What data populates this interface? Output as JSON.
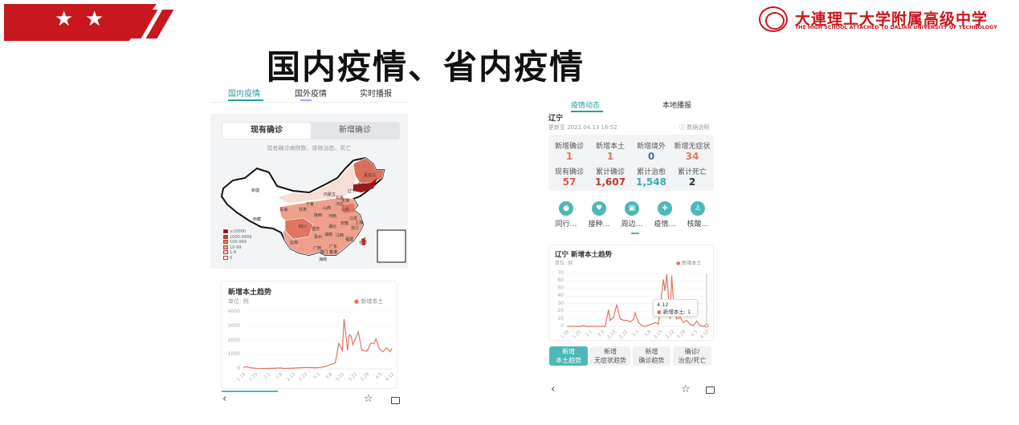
{
  "slide": {
    "title": "国内疫情、省内疫情",
    "logo_cn": "大連理工大学附属高级中学",
    "logo_en": "THE HIGH SCHOOL ATTACHED TO DALIAN UNIVERSITY OF TECHNOLOGY",
    "brand_color": "#c8171e",
    "banner_icons": [
      "star-icon",
      "star-icon"
    ]
  },
  "left_phone": {
    "tabs": [
      "国内疫情",
      "国外疫情",
      "实时播报"
    ],
    "active_tab": 0,
    "segment": [
      "现有确诊",
      "新增确诊"
    ],
    "map_caption": "现有确诊病例数，排除治愈、死亡",
    "legend": [
      {
        "label": "≥10000",
        "color": "#8b0f0f"
      },
      {
        "label": "1000-9999",
        "color": "#c0392b"
      },
      {
        "label": "100-999",
        "color": "#e07560"
      },
      {
        "label": "10-99",
        "color": "#eea08c"
      },
      {
        "label": "1-9",
        "color": "#f8ddd3"
      },
      {
        "label": "0",
        "color": "#ffffff"
      }
    ],
    "provinces": [
      "黑龙江",
      "吉林",
      "辽宁",
      "内蒙古",
      "新疆",
      "西藏",
      "青海",
      "甘肃",
      "宁夏",
      "北京",
      "天津",
      "河北",
      "山西",
      "山东",
      "陕西",
      "河南",
      "江苏",
      "安徽",
      "上海",
      "湖北",
      "四川",
      "重庆",
      "浙江",
      "贵州",
      "湖南",
      "江西",
      "福建",
      "云南",
      "广西",
      "广东",
      "台湾",
      "澳门",
      "香港",
      "海南"
    ]
  },
  "right_phone": {
    "tabs": [
      "疫情动态",
      "本地播报"
    ],
    "region": "辽宁",
    "updated": "更新至 2022.04.13 16:52",
    "data_note": "数据说明",
    "stats": [
      {
        "label": "新增确诊",
        "value": "1",
        "color": "#e8745c"
      },
      {
        "label": "新增本土",
        "value": "1",
        "color": "#e8745c"
      },
      {
        "label": "新增境外",
        "value": "0",
        "color": "#4a6fa5"
      },
      {
        "label": "新增无症状",
        "value": "34",
        "color": "#e8745c"
      },
      {
        "label": "现有确诊",
        "value": "57",
        "color": "#e05a4e"
      },
      {
        "label": "累计确诊",
        "value": "1,607",
        "color": "#c0392b"
      },
      {
        "label": "累计治愈",
        "value": "1,548",
        "color": "#3aaeae"
      },
      {
        "label": "累计死亡",
        "value": "2",
        "color": "#333333"
      }
    ],
    "shortcuts": [
      {
        "label": "同行…",
        "icon": "person-icon"
      },
      {
        "label": "接种…",
        "icon": "shield-icon"
      },
      {
        "label": "周边…",
        "icon": "building-icon"
      },
      {
        "label": "疫情…",
        "icon": "hospital-icon"
      },
      {
        "label": "核酸…",
        "icon": "test-tube-icon"
      }
    ],
    "tooltip": {
      "date": "4.12",
      "text": "新增本土: 1"
    },
    "buttons": [
      {
        "line1": "新增",
        "line2": "本土趋势"
      },
      {
        "line1": "新增",
        "line2": "无症状趋势"
      },
      {
        "line1": "新增",
        "line2": "确诊趋势"
      },
      {
        "line1": "确诊/",
        "line2": "治愈/死亡"
      }
    ]
  },
  "chart_data": [
    {
      "type": "line",
      "title": "新增本土趋势",
      "unit": "单位: 例",
      "series_name": "新增本土",
      "color": "#e07560",
      "ylim": [
        0,
        4000
      ],
      "yticks": [
        0,
        1000,
        2000,
        3000,
        4000
      ],
      "xticks": [
        "1.18",
        "1.25",
        "2.1",
        "2.8",
        "2.15",
        "2.22",
        "3.1",
        "3.8",
        "3.15",
        "3.22",
        "3.29",
        "4.5",
        "4.12"
      ],
      "grid": true,
      "legend": "top-right",
      "points": [
        [
          "1.18",
          100
        ],
        [
          "1.20",
          150
        ],
        [
          "1.22",
          80
        ],
        [
          "1.25",
          40
        ],
        [
          "2.1",
          30
        ],
        [
          "2.8",
          60
        ],
        [
          "2.10",
          30
        ],
        [
          "2.15",
          50
        ],
        [
          "2.22",
          90
        ],
        [
          "3.1",
          80
        ],
        [
          "3.5",
          150
        ],
        [
          "3.8",
          300
        ],
        [
          "3.11",
          400
        ],
        [
          "3.13",
          1800
        ],
        [
          "3.15",
          1300
        ],
        [
          "3.16",
          3500
        ],
        [
          "3.18",
          1300
        ],
        [
          "3.19",
          2400
        ],
        [
          "3.20",
          2300
        ],
        [
          "3.21",
          1700
        ],
        [
          "3.24",
          2600
        ],
        [
          "3.26",
          1300
        ],
        [
          "3.29",
          1250
        ],
        [
          "3.31",
          1800
        ],
        [
          "4.2",
          1800
        ],
        [
          "4.3",
          2100
        ],
        [
          "4.5",
          1400
        ],
        [
          "4.7",
          1200
        ],
        [
          "4.8",
          1350
        ],
        [
          "4.9",
          1500
        ],
        [
          "4.11",
          1200
        ],
        [
          "4.12",
          1450
        ]
      ]
    },
    {
      "type": "line",
      "title": "辽宁 新增本土趋势",
      "unit": "单位: 例",
      "series_name": "新增本土",
      "color": "#e07560",
      "ylim": [
        0,
        70
      ],
      "yticks": [
        0,
        10,
        20,
        30,
        40,
        50,
        60,
        70
      ],
      "xticks": [
        "1.18",
        "1.25",
        "2.1",
        "2.8",
        "2.15",
        "2.22",
        "3.1",
        "3.8",
        "3.15",
        "3.22",
        "3.29",
        "4.5",
        "4.12"
      ],
      "grid": true,
      "legend": "top-right",
      "points": [
        [
          "1.18",
          0
        ],
        [
          "1.26",
          0
        ],
        [
          "1.28",
          1
        ],
        [
          "1.30",
          0
        ],
        [
          "2.10",
          0
        ],
        [
          "2.12",
          22
        ],
        [
          "2.13",
          8
        ],
        [
          "2.15",
          12
        ],
        [
          "2.17",
          29
        ],
        [
          "2.19",
          10
        ],
        [
          "2.21",
          8
        ],
        [
          "2.23",
          8
        ],
        [
          "2.25",
          6
        ],
        [
          "2.27",
          9
        ],
        [
          "2.28",
          18
        ],
        [
          "3.2",
          5
        ],
        [
          "3.4",
          1
        ],
        [
          "3.6",
          0
        ],
        [
          "3.10",
          3
        ],
        [
          "3.12",
          5
        ],
        [
          "3.14",
          3
        ],
        [
          "3.17",
          62
        ],
        [
          "3.18",
          47
        ],
        [
          "3.19",
          69
        ],
        [
          "3.20",
          40
        ],
        [
          "3.21",
          10
        ],
        [
          "3.22",
          67
        ],
        [
          "3.23",
          35
        ],
        [
          "3.25",
          10
        ],
        [
          "3.27",
          12
        ],
        [
          "3.29",
          5
        ],
        [
          "3.31",
          8
        ],
        [
          "4.2",
          3
        ],
        [
          "4.4",
          1
        ],
        [
          "4.6",
          7
        ],
        [
          "4.8",
          1
        ],
        [
          "4.10",
          0
        ],
        [
          "4.12",
          1
        ]
      ]
    }
  ]
}
